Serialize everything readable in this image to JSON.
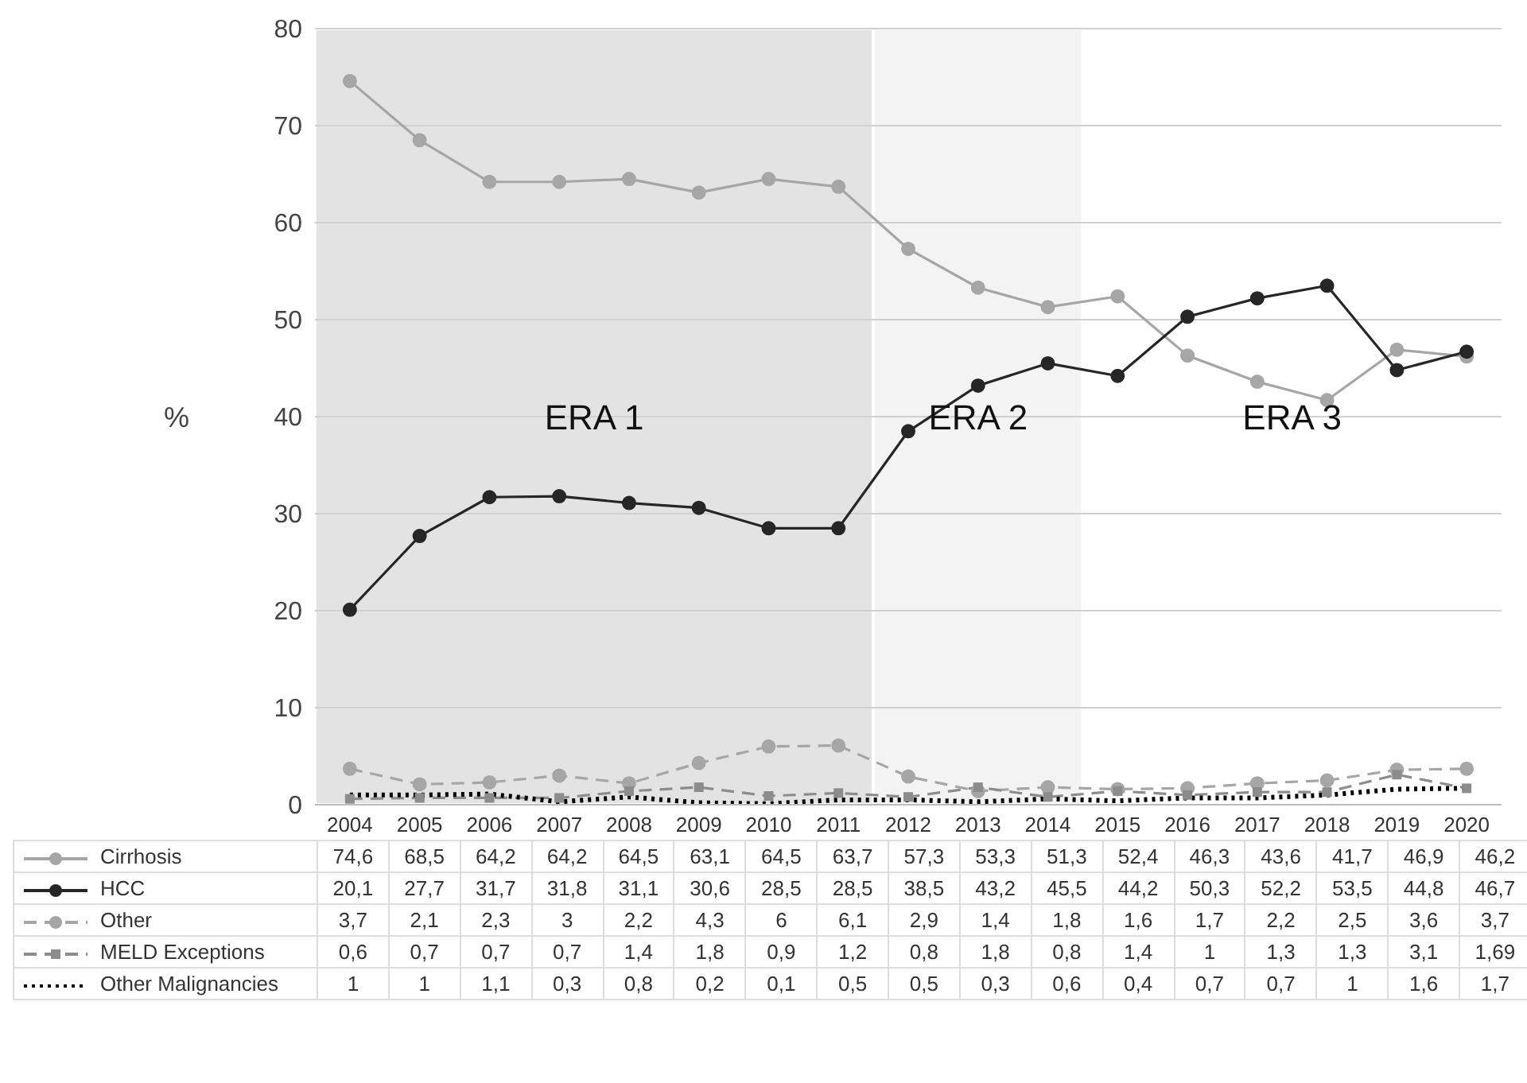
{
  "chart_data": {
    "type": "line",
    "ylabel": "%",
    "categories": [
      "2004",
      "2005",
      "2006",
      "2007",
      "2008",
      "2009",
      "2010",
      "2011",
      "2012",
      "2013",
      "2014",
      "2015",
      "2016",
      "2017",
      "2018",
      "2019",
      "2020"
    ],
    "ylim": [
      0,
      80
    ],
    "yticks": [
      0,
      10,
      20,
      30,
      40,
      50,
      60,
      70,
      80
    ],
    "grid": "y",
    "legend": "bottom",
    "bands": [
      {
        "axis": "x",
        "from": "2004",
        "to": "2011",
        "label": "ERA 1",
        "color": "#e3e3e3"
      },
      {
        "axis": "x",
        "from": "2012",
        "to": "2014",
        "label": "ERA 2",
        "color": "#f3f3f3"
      }
    ],
    "annotations": [
      "ERA 3"
    ],
    "series": [
      {
        "name": "Cirrhosis",
        "color": "#a6a6a6",
        "marker": "circle",
        "line_style": "solid",
        "values": [
          74.6,
          68.5,
          64.2,
          64.2,
          64.5,
          63.1,
          64.5,
          63.7,
          57.3,
          53.3,
          51.3,
          52.4,
          46.3,
          43.6,
          41.7,
          46.9,
          46.2
        ],
        "value_labels": [
          "74,6",
          "68,5",
          "64,2",
          "64,2",
          "64,5",
          "63,1",
          "64,5",
          "63,7",
          "57,3",
          "53,3",
          "51,3",
          "52,4",
          "46,3",
          "43,6",
          "41,7",
          "46,9",
          "46,2"
        ]
      },
      {
        "name": "HCC",
        "color": "#262626",
        "marker": "circle",
        "line_style": "solid",
        "values": [
          20.1,
          27.7,
          31.7,
          31.8,
          31.1,
          30.6,
          28.5,
          28.5,
          38.5,
          43.2,
          45.5,
          44.2,
          50.3,
          52.2,
          53.5,
          44.8,
          46.7
        ],
        "value_labels": [
          "20,1",
          "27,7",
          "31,7",
          "31,8",
          "31,1",
          "30,6",
          "28,5",
          "28,5",
          "38,5",
          "43,2",
          "45,5",
          "44,2",
          "50,3",
          "52,2",
          "53,5",
          "44,8",
          "46,7"
        ]
      },
      {
        "name": "Other",
        "color": "#a6a6a6",
        "marker": "circle",
        "line_style": "dashed",
        "values": [
          3.7,
          2.1,
          2.3,
          3,
          2.2,
          4.3,
          6,
          6.1,
          2.9,
          1.4,
          1.8,
          1.6,
          1.7,
          2.2,
          2.5,
          3.6,
          3.7
        ],
        "value_labels": [
          "3,7",
          "2,1",
          "2,3",
          "3",
          "2,2",
          "4,3",
          "6",
          "6,1",
          "2,9",
          "1,4",
          "1,8",
          "1,6",
          "1,7",
          "2,2",
          "2,5",
          "3,6",
          "3,7"
        ]
      },
      {
        "name": "MELD Exceptions",
        "color": "#8c8c8c",
        "marker": "square",
        "line_style": "dashed",
        "values": [
          0.6,
          0.7,
          0.7,
          0.7,
          1.4,
          1.8,
          0.9,
          1.2,
          0.8,
          1.8,
          0.8,
          1.4,
          1,
          1.3,
          1.3,
          3.1,
          1.69
        ],
        "value_labels": [
          "0,6",
          "0,7",
          "0,7",
          "0,7",
          "1,4",
          "1,8",
          "0,9",
          "1,2",
          "0,8",
          "1,8",
          "0,8",
          "1,4",
          "1",
          "1,3",
          "1,3",
          "3,1",
          "1,69"
        ]
      },
      {
        "name": "Other Malignancies",
        "color": "#000000",
        "marker": "none",
        "line_style": "dotted",
        "values": [
          1,
          1,
          1.1,
          0.3,
          0.8,
          0.2,
          0.1,
          0.5,
          0.5,
          0.3,
          0.6,
          0.4,
          0.7,
          0.7,
          1,
          1.6,
          1.7
        ],
        "value_labels": [
          "1",
          "1",
          "1,1",
          "0,3",
          "0,8",
          "0,2",
          "0,1",
          "0,5",
          "0,5",
          "0,3",
          "0,6",
          "0,4",
          "0,7",
          "0,7",
          "1",
          "1,6",
          "1,7"
        ]
      }
    ]
  }
}
